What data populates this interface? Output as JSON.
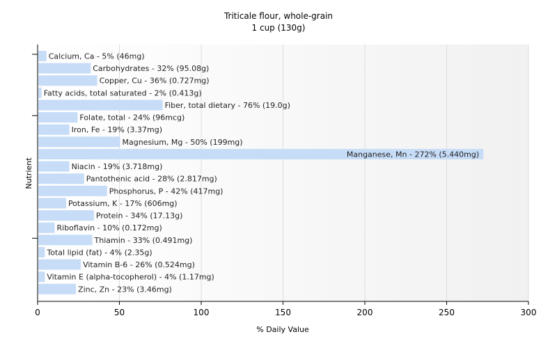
{
  "chart_data": {
    "type": "bar",
    "orientation": "horizontal",
    "title": "Triticale flour, whole-grain",
    "subtitle": "1 cup (130g)",
    "xlabel": "% Daily Value",
    "ylabel": "Nutrient",
    "xlim": [
      0,
      300
    ],
    "xticks": [
      "0",
      "50",
      "100",
      "150",
      "200",
      "250",
      "300"
    ],
    "grid": true,
    "bar_color": "#c6dcf7",
    "categories": [
      "Calcium, Ca",
      "Carbohydrates",
      "Copper, Cu",
      "Fatty acids, total saturated",
      "Fiber, total dietary",
      "Folate, total",
      "Iron, Fe",
      "Magnesium, Mg",
      "Manganese, Mn",
      "Niacin",
      "Pantothenic acid",
      "Phosphorus, P",
      "Potassium, K",
      "Protein",
      "Riboflavin",
      "Thiamin",
      "Total lipid (fat)",
      "Vitamin B-6",
      "Vitamin E (alpha-tocopherol)",
      "Zinc, Zn"
    ],
    "values": [
      5,
      32,
      36,
      2,
      76,
      24,
      19,
      50,
      272,
      19,
      28,
      42,
      17,
      34,
      10,
      33,
      4,
      26,
      4,
      23
    ],
    "labels": [
      "Calcium, Ca - 5% (46mg)",
      "Carbohydrates - 32% (95.08g)",
      "Copper, Cu - 36% (0.727mg)",
      "Fatty acids, total saturated - 2% (0.413g)",
      "Fiber, total dietary - 76% (19.0g)",
      "Folate, total - 24% (96mcg)",
      "Iron, Fe - 19% (3.37mg)",
      "Magnesium, Mg - 50% (199mg)",
      "Manganese, Mn - 272% (5.440mg)",
      "Niacin - 19% (3.718mg)",
      "Pantothenic acid - 28% (2.817mg)",
      "Phosphorus, P - 42% (417mg)",
      "Potassium, K - 17% (606mg)",
      "Protein - 34% (17.13g)",
      "Riboflavin - 10% (0.172mg)",
      "Thiamin - 33% (0.491mg)",
      "Total lipid (fat) - 4% (2.35g)",
      "Vitamin B-6 - 26% (0.524mg)",
      "Vitamin E (alpha-tocopherol) - 4% (1.17mg)",
      "Zinc, Zn - 23% (3.46mg)"
    ]
  }
}
